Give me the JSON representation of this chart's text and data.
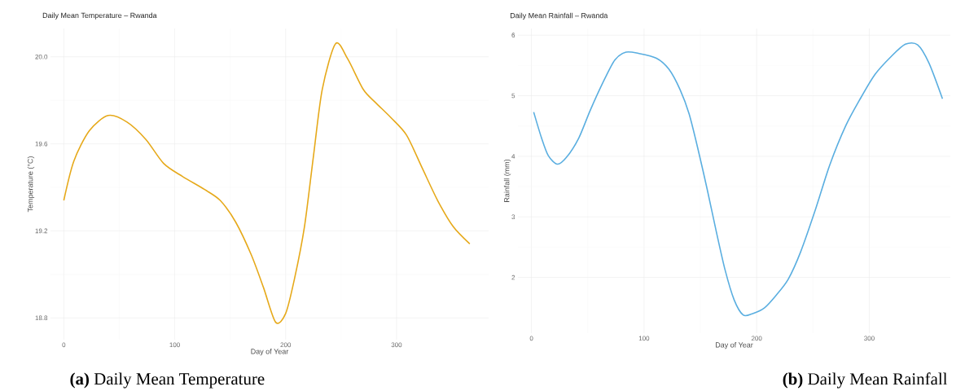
{
  "chart_data": [
    {
      "type": "line",
      "title": "Daily Mean Temperature – Rwanda",
      "xlabel": "Day of Year",
      "ylabel": "Temperature (°C)",
      "color": "#e6a91a",
      "grid": true,
      "x": [
        0,
        9,
        23,
        40,
        57,
        74,
        90,
        107,
        127,
        141,
        155,
        169,
        180,
        191,
        200,
        208,
        217,
        225,
        233,
        245,
        256,
        270,
        281,
        295,
        309,
        323,
        337,
        351,
        366
      ],
      "values": [
        19.34,
        19.52,
        19.66,
        19.73,
        19.7,
        19.62,
        19.51,
        19.45,
        19.39,
        19.34,
        19.24,
        19.09,
        18.94,
        18.78,
        18.82,
        18.98,
        19.22,
        19.54,
        19.85,
        20.06,
        19.99,
        19.85,
        19.79,
        19.72,
        19.64,
        19.49,
        19.34,
        19.22,
        19.14
      ],
      "xlim": [
        -12,
        383
      ],
      "ylim": [
        18.7,
        20.13
      ],
      "xticks": [
        0,
        100,
        200,
        300
      ],
      "yticks": [
        18.8,
        19.2,
        19.6,
        {
          "value": 20.0,
          "label": "20.0"
        }
      ],
      "annotations": [
        "**(a)** Daily Mean Temperature"
      ]
    },
    {
      "type": "line",
      "title": "Daily Mean Rainfall – Rwanda",
      "xlabel": "Day of Year",
      "ylabel": "Rainfall (mm)",
      "color": "#5aaee0",
      "grid": true,
      "x": [
        2,
        9,
        15,
        23,
        31,
        42,
        52,
        63,
        74,
        84,
        95,
        111,
        122,
        132,
        140,
        148,
        156,
        164,
        172,
        180,
        188,
        196,
        207,
        217,
        228,
        239,
        252,
        265,
        279,
        292,
        305,
        319,
        332,
        343,
        353,
        365
      ],
      "values": [
        4.73,
        4.3,
        4.01,
        3.87,
        3.98,
        4.3,
        4.75,
        5.2,
        5.59,
        5.72,
        5.7,
        5.62,
        5.44,
        5.1,
        4.7,
        4.11,
        3.46,
        2.77,
        2.12,
        1.63,
        1.38,
        1.4,
        1.5,
        1.7,
        1.97,
        2.42,
        3.11,
        3.86,
        4.5,
        4.95,
        5.35,
        5.64,
        5.85,
        5.84,
        5.54,
        4.95
      ],
      "xlim": [
        -12,
        372
      ],
      "ylim": [
        1.08,
        6.11
      ],
      "xticks": [
        0,
        100,
        200,
        300
      ],
      "yticks": [
        2,
        3,
        4,
        5,
        6
      ],
      "annotations": [
        "**(b)** Daily Mean Rainfall"
      ]
    }
  ]
}
